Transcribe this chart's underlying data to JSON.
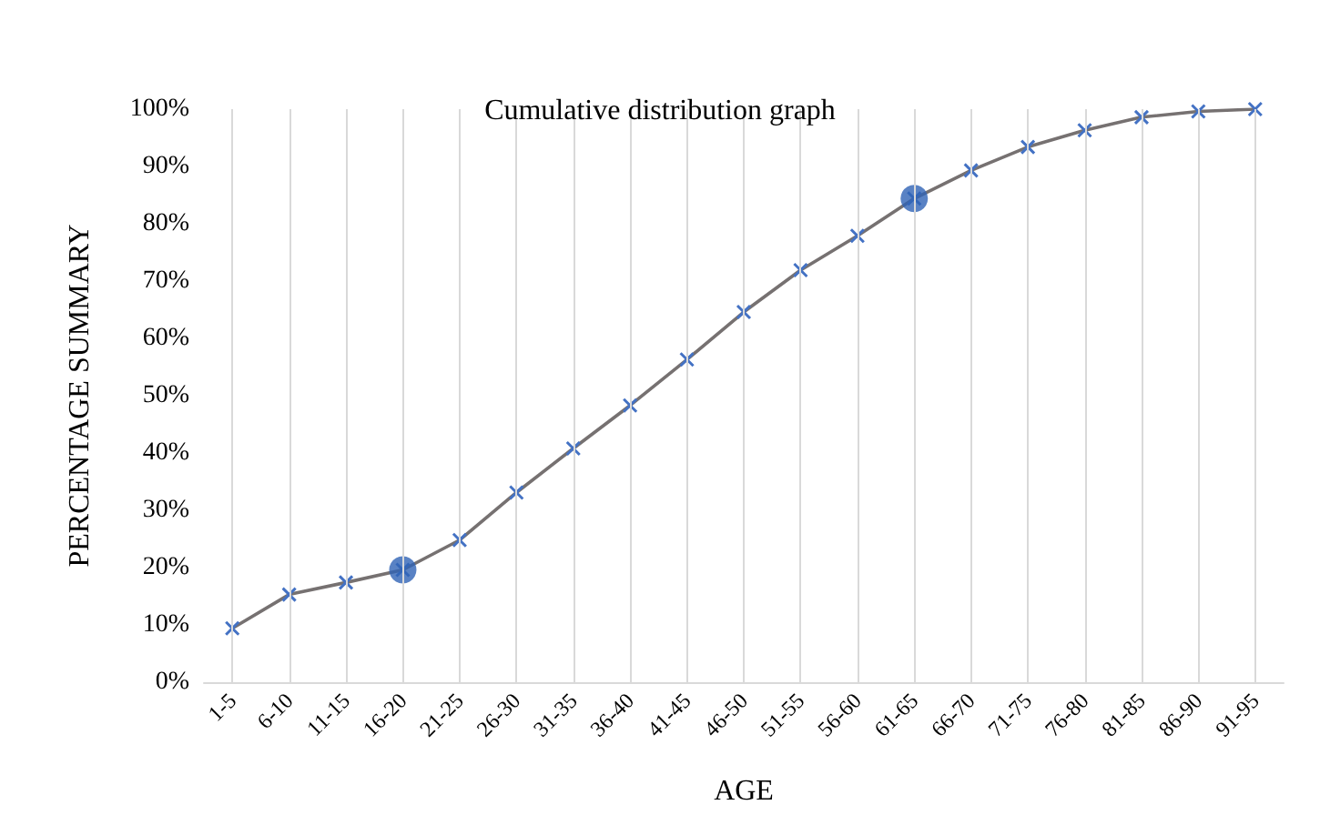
{
  "chart_data": {
    "type": "line",
    "title": "Cumulative distribution graph",
    "xlabel": "AGE",
    "ylabel": "PERCENTAGE SUMMARY",
    "categories": [
      "1-5",
      "6-10",
      "11-15",
      "16-20",
      "21-25",
      "26-30",
      "31-35",
      "36-40",
      "41-45",
      "46-50",
      "51-55",
      "56-60",
      "61-65",
      "66-70",
      "71-75",
      "76-80",
      "81-85",
      "86-90",
      "91-95"
    ],
    "series": [
      {
        "color": "#767171",
        "marker": "cross",
        "values": [
          9.4,
          15.3,
          17.4,
          19.6,
          24.8,
          33.1,
          40.8,
          48.3,
          56.3,
          64.6,
          71.9,
          77.9,
          84.4,
          89.3,
          93.4,
          96.3,
          98.6,
          99.6,
          100
        ]
      },
      {
        "type": "scatter",
        "color": "#2f63b5",
        "marker": "circle",
        "x": [
          "16-20",
          "61-65"
        ],
        "values": [
          19.6,
          84.4
        ]
      }
    ],
    "ylim": [
      0,
      100
    ],
    "yticks": [
      {
        "value": 0,
        "label": "0%"
      },
      {
        "value": 10,
        "label": "10%"
      },
      {
        "value": 20,
        "label": "20%"
      },
      {
        "value": 30,
        "label": "30%"
      },
      {
        "value": 40,
        "label": "40%"
      },
      {
        "value": 50,
        "label": "50%"
      },
      {
        "value": 60,
        "label": "60%"
      },
      {
        "value": 70,
        "label": "70%"
      },
      {
        "value": 80,
        "label": "80%"
      },
      {
        "value": 90,
        "label": "90%"
      },
      {
        "value": 100,
        "label": "100%"
      }
    ],
    "grid": "x"
  }
}
